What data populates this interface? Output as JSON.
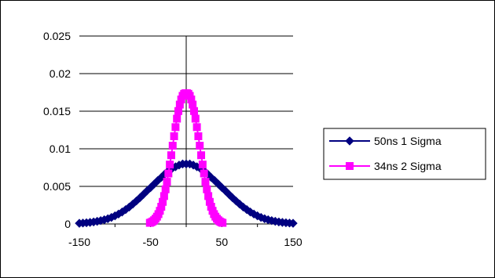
{
  "chart_data": {
    "type": "line",
    "title": "",
    "xlabel": "",
    "ylabel": "",
    "xlim": [
      -150,
      150
    ],
    "ylim": [
      0,
      0.025
    ],
    "x_ticks": [
      -150,
      -50,
      50,
      150
    ],
    "y_ticks": [
      0,
      0.005,
      0.01,
      0.015,
      0.02,
      0.025
    ],
    "x_tick_labels": [
      "-150",
      "-50",
      "50",
      "150"
    ],
    "y_tick_labels": [
      "0",
      "0.005",
      "0.01",
      "0.015",
      "0.02",
      "0.025"
    ],
    "grid": "horizontal",
    "legend_position": "right",
    "series": [
      {
        "name": "50ns 1 Sigma",
        "color": "#000080",
        "marker": "diamond",
        "x": [
          -150,
          -145,
          -140,
          -135,
          -130,
          -125,
          -120,
          -115,
          -110,
          -105,
          -100,
          -95,
          -90,
          -85,
          -80,
          -75,
          -70,
          -65,
          -60,
          -55,
          -50,
          -45,
          -40,
          -35,
          -30,
          -25,
          -20,
          -15,
          -10,
          -5,
          0,
          5,
          10,
          15,
          20,
          25,
          30,
          35,
          40,
          45,
          50,
          55,
          60,
          65,
          70,
          75,
          80,
          85,
          90,
          95,
          100,
          105,
          110,
          115,
          120,
          125,
          130,
          135,
          140,
          145,
          150
        ],
        "y": [
          9e-05,
          0.00012,
          0.00016,
          0.00021,
          0.00027,
          0.00035,
          0.00045,
          0.00056,
          0.0007,
          0.00087,
          0.00108,
          0.00132,
          0.00159,
          0.00191,
          0.00225,
          0.00264,
          0.00305,
          0.00348,
          0.00394,
          0.00441,
          0.00484,
          0.00531,
          0.00577,
          0.00619,
          0.00666,
          0.00707,
          0.00737,
          0.00761,
          0.00783,
          0.00798,
          0.00798,
          0.00798,
          0.00783,
          0.00761,
          0.00737,
          0.00707,
          0.00666,
          0.00619,
          0.00577,
          0.00531,
          0.00484,
          0.00441,
          0.00394,
          0.00348,
          0.00305,
          0.00264,
          0.00225,
          0.00191,
          0.00159,
          0.00132,
          0.00108,
          0.00087,
          0.0007,
          0.00056,
          0.00045,
          0.00035,
          0.00027,
          0.00021,
          0.00016,
          0.00012,
          9e-05
        ]
      },
      {
        "name": "34ns 2 Sigma",
        "color": "#FF00FF",
        "marker": "square",
        "x": [
          -51,
          -49,
          -47,
          -45,
          -43,
          -41,
          -39,
          -37,
          -35,
          -33,
          -31,
          -29,
          -27,
          -25,
          -23,
          -21,
          -19,
          -17,
          -15,
          -13,
          -11,
          -9,
          -7,
          -5,
          -3,
          -1,
          1,
          3,
          5,
          7,
          9,
          11,
          13,
          15,
          17,
          19,
          21,
          23,
          25,
          27,
          29,
          31,
          33,
          35,
          37,
          39,
          41,
          43,
          45,
          47,
          49,
          51
        ],
        "y": [
          0.00015,
          0.00023,
          0.00034,
          0.0005,
          0.0007,
          0.00097,
          0.00131,
          0.00175,
          0.00229,
          0.00294,
          0.00371,
          0.00461,
          0.00561,
          0.00672,
          0.0079,
          0.00914,
          0.01041,
          0.01167,
          0.01288,
          0.01401,
          0.01502,
          0.01588,
          0.01656,
          0.01704,
          0.01731,
          0.01739,
          0.01739,
          0.01731,
          0.01704,
          0.01656,
          0.01588,
          0.01502,
          0.01401,
          0.01288,
          0.01167,
          0.01041,
          0.00914,
          0.0079,
          0.00672,
          0.00561,
          0.00461,
          0.00371,
          0.00294,
          0.00229,
          0.00175,
          0.00131,
          0.00097,
          0.0007,
          0.0005,
          0.00034,
          0.00023,
          0.00015
        ]
      }
    ]
  }
}
